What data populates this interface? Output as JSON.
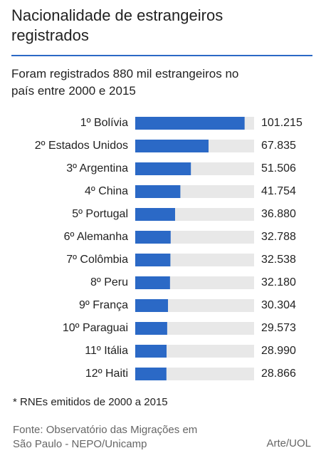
{
  "chart_data": {
    "type": "bar",
    "orientation": "horizontal",
    "title": "Nacionalidade de estrangeiros registrados",
    "subtitle": "Foram registrados 880 mil estrangeiros no país entre 2000 e 2015",
    "categories": [
      "1º Bolívia",
      "2º Estados Unidos",
      "3º Argentina",
      "4º China",
      "5º Portugal",
      "6º Alemanha",
      "7º Colômbia",
      "8º Peru",
      "9º França",
      "10º Paraguai",
      "11º Itália",
      "12º Haiti"
    ],
    "values": [
      101215,
      67835,
      51506,
      41754,
      36880,
      32788,
      32538,
      32180,
      30304,
      29573,
      28990,
      28866
    ],
    "value_labels": [
      "101.215",
      "67.835",
      "51.506",
      "41.754",
      "36.880",
      "32.788",
      "32.538",
      "32.180",
      "30.304",
      "29.573",
      "28.990",
      "28.866"
    ],
    "color": "#2b69c6",
    "xlim": [
      0,
      110000
    ],
    "note": "* RNEs emitidos de 2000 a 2015",
    "source": "Fonte: Observatório das Migrações em São Paulo - NEPO/Unicamp",
    "credit": "Arte/UOL"
  }
}
